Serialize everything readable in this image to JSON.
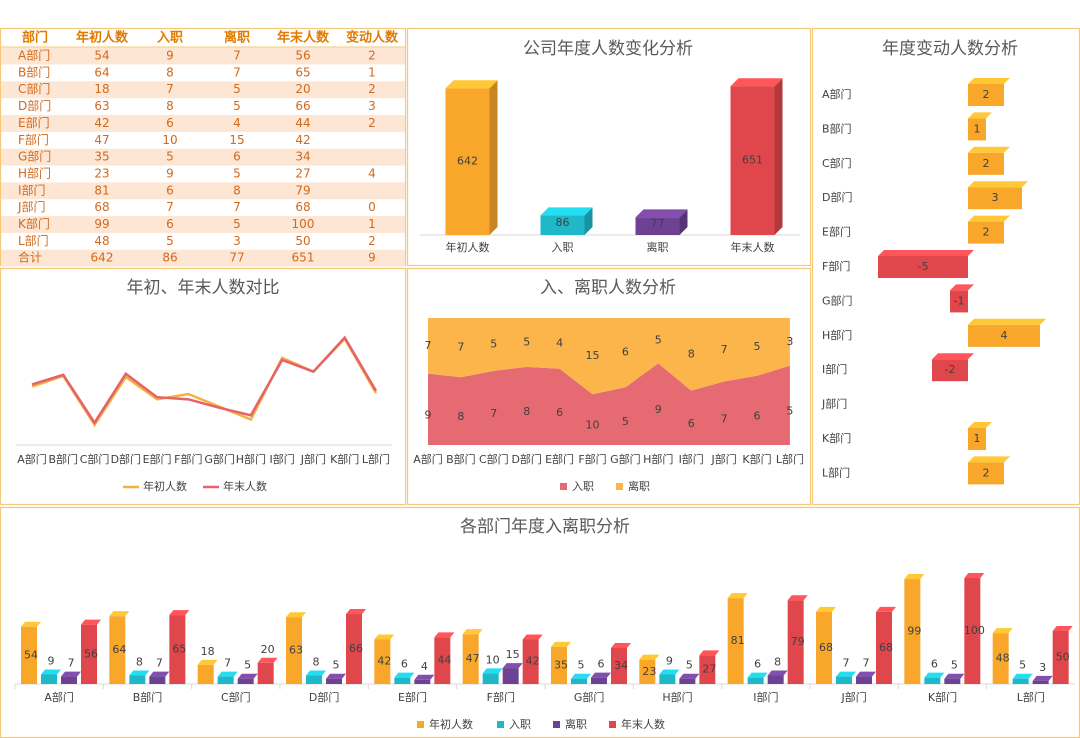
{
  "table": {
    "columns": [
      "部门",
      "年初人数",
      "入职",
      "离职",
      "年末人数",
      "变动人数"
    ],
    "rows": [
      [
        "A部门",
        54,
        9,
        7,
        56,
        2
      ],
      [
        "B部门",
        64,
        8,
        7,
        65,
        1
      ],
      [
        "C部门",
        18,
        7,
        5,
        20,
        2
      ],
      [
        "D部门",
        63,
        8,
        5,
        66,
        3
      ],
      [
        "E部门",
        42,
        6,
        4,
        44,
        2
      ],
      [
        "F部门",
        47,
        10,
        15,
        42,
        null
      ],
      [
        "G部门",
        35,
        5,
        6,
        34,
        null
      ],
      [
        "H部门",
        23,
        9,
        5,
        27,
        4
      ],
      [
        "I部门",
        81,
        6,
        8,
        79,
        null
      ],
      [
        "J部门",
        68,
        7,
        7,
        68,
        0
      ],
      [
        "K部门",
        99,
        6,
        5,
        100,
        1
      ],
      [
        "L部门",
        48,
        5,
        3,
        50,
        2
      ],
      [
        "合计",
        642,
        86,
        77,
        651,
        9
      ]
    ]
  },
  "chart_data": [
    {
      "type": "bar",
      "title": "公司年度人数变化分析",
      "categories": [
        "年初人数",
        "入职",
        "离职",
        "年末人数"
      ],
      "values": [
        642,
        86,
        77,
        651
      ],
      "colors": [
        "#f9a72b",
        "#1fb8c9",
        "#6d4292",
        "#e0474c"
      ],
      "ylim": [
        0,
        700
      ]
    },
    {
      "type": "hbar",
      "title": "年度变动人数分析",
      "categories": [
        "A部门",
        "B部门",
        "C部门",
        "D部门",
        "E部门",
        "F部门",
        "G部门",
        "H部门",
        "I部门",
        "J部门",
        "K部门",
        "L部门"
      ],
      "values": [
        2,
        1,
        2,
        3,
        2,
        -5,
        -1,
        4,
        -2,
        0,
        1,
        2
      ],
      "color": "#f9a72b",
      "negative_color": "#e0474c",
      "xlim": [
        -6,
        5
      ]
    },
    {
      "type": "line",
      "title": "年初、年末人数对比",
      "categories": [
        "A部门",
        "B部门",
        "C部门",
        "D部门",
        "E部门",
        "F部门",
        "G部门",
        "H部门",
        "I部门",
        "J部门",
        "K部门",
        "L部门"
      ],
      "series": [
        {
          "name": "年初人数",
          "color": "#f4b13e",
          "values": [
            54,
            64,
            18,
            63,
            42,
            47,
            35,
            23,
            81,
            68,
            99,
            48
          ]
        },
        {
          "name": "年末人数",
          "color": "#e4626a",
          "values": [
            56,
            65,
            20,
            66,
            44,
            42,
            34,
            27,
            79,
            68,
            100,
            50
          ]
        }
      ],
      "ylim": [
        0,
        110
      ],
      "legend": "bottom"
    },
    {
      "type": "area",
      "stacking": "percent",
      "title": "入、离职人数分析",
      "categories": [
        "A部门",
        "B部门",
        "C部门",
        "D部门",
        "E部门",
        "F部门",
        "G部门",
        "H部门",
        "I部门",
        "J部门",
        "K部门",
        "L部门"
      ],
      "series": [
        {
          "name": "入职",
          "color": "#e66a72",
          "values": [
            9,
            8,
            7,
            8,
            6,
            10,
            5,
            9,
            6,
            7,
            6,
            5
          ]
        },
        {
          "name": "离职",
          "color": "#fbb54a",
          "values": [
            7,
            7,
            5,
            5,
            4,
            15,
            6,
            5,
            8,
            7,
            5,
            3
          ]
        }
      ],
      "ylim": [
        0,
        100
      ],
      "legend": "bottom"
    },
    {
      "type": "grouped_bar",
      "title": "各部门年度入离职分析",
      "categories": [
        "A部门",
        "B部门",
        "C部门",
        "D部门",
        "E部门",
        "F部门",
        "G部门",
        "H部门",
        "I部门",
        "J部门",
        "K部门",
        "L部门"
      ],
      "series": [
        {
          "name": "年初人数",
          "color": "#f9a72b",
          "values": [
            54,
            64,
            18,
            63,
            42,
            47,
            35,
            23,
            81,
            68,
            99,
            48
          ]
        },
        {
          "name": "入职",
          "color": "#1fb8c9",
          "values": [
            9,
            8,
            7,
            8,
            6,
            10,
            5,
            9,
            6,
            7,
            6,
            5
          ]
        },
        {
          "name": "离职",
          "color": "#6d4292",
          "values": [
            7,
            7,
            5,
            5,
            4,
            15,
            6,
            5,
            8,
            7,
            5,
            3
          ]
        },
        {
          "name": "年末人数",
          "color": "#e0474c",
          "values": [
            56,
            65,
            20,
            66,
            44,
            42,
            34,
            27,
            79,
            68,
            100,
            50
          ]
        }
      ],
      "ylim": [
        0,
        110
      ],
      "legend": "bottom"
    }
  ]
}
